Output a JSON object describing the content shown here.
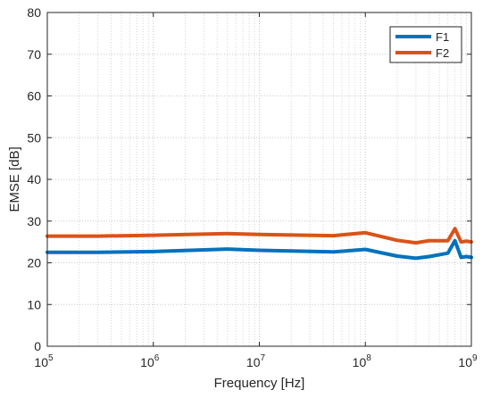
{
  "chart_data": {
    "type": "line",
    "xscale": "log",
    "xlim": [
      100000,
      1000000000
    ],
    "ylim": [
      0,
      80
    ],
    "grid": true,
    "xlabel": "Frequency [Hz]",
    "ylabel": "EMSE [dB]",
    "legend_position": "top-right",
    "x_ticks": [
      {
        "base": "10",
        "exp": "5"
      },
      {
        "base": "10",
        "exp": "6"
      },
      {
        "base": "10",
        "exp": "7"
      },
      {
        "base": "10",
        "exp": "8"
      },
      {
        "base": "10",
        "exp": "9"
      }
    ],
    "y_ticks": [
      "0",
      "10",
      "20",
      "30",
      "40",
      "50",
      "60",
      "70",
      "80"
    ],
    "series": [
      {
        "name": "F1",
        "color": "#0072BD",
        "x": [
          100000,
          300000,
          1000000,
          5000000,
          10000000,
          50000000,
          100000000,
          200000000,
          300000000,
          400000000,
          600000000,
          700000000,
          800000000,
          900000000,
          1000000000
        ],
        "y": [
          22.5,
          22.5,
          22.7,
          23.3,
          23.0,
          22.6,
          23.2,
          21.6,
          21.1,
          21.5,
          22.3,
          25.3,
          21.3,
          21.5,
          21.3
        ]
      },
      {
        "name": "F2",
        "color": "#D95319",
        "x": [
          100000,
          300000,
          1000000,
          5000000,
          10000000,
          50000000,
          100000000,
          200000000,
          300000000,
          400000000,
          600000000,
          700000000,
          800000000,
          900000000,
          1000000000
        ],
        "y": [
          26.4,
          26.4,
          26.6,
          27.0,
          26.8,
          26.5,
          27.2,
          25.4,
          24.8,
          25.3,
          25.3,
          28.2,
          25.0,
          25.2,
          25.0
        ]
      }
    ]
  }
}
